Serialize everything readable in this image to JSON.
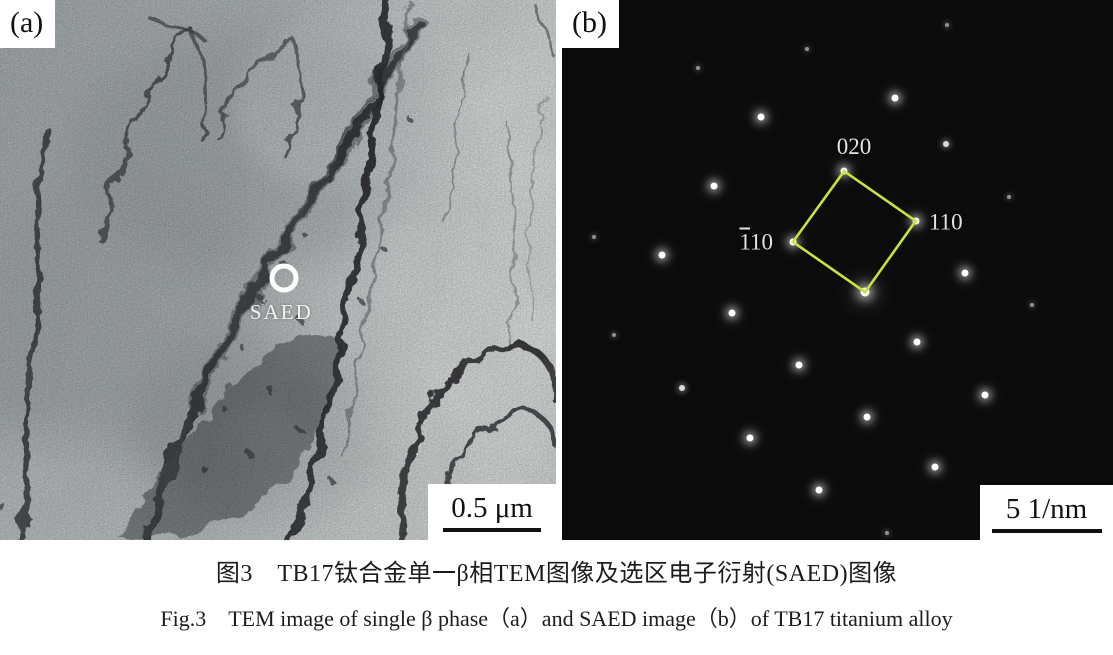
{
  "figure": {
    "panel_a": {
      "label": "(a)",
      "saed_marker_label": "SAED",
      "scale_bar_text": "0.5 μm"
    },
    "panel_b": {
      "label": "(b)",
      "scale_bar_text": "5 1/nm",
      "background_color": "#0b0b0b",
      "spot_color": "#ffffff",
      "square_color": "#cbe23b",
      "labels": {
        "l020": "020",
        "l110": "110",
        "m110_bar": "1",
        "m110_rest": "10"
      },
      "square_vertices_pct": [
        [
          51.2,
          31.7
        ],
        [
          64.2,
          40.9
        ],
        [
          55.0,
          54.1
        ],
        [
          41.9,
          44.8
        ]
      ],
      "spots": [
        [
          44.5,
          9.1,
          "f"
        ],
        [
          69.9,
          4.6,
          "f"
        ],
        [
          24.7,
          12.6,
          "f"
        ],
        [
          60.4,
          18.1,
          "b"
        ],
        [
          36.1,
          21.7,
          "b"
        ],
        [
          69.7,
          26.7,
          "m"
        ],
        [
          51.2,
          31.7,
          "b"
        ],
        [
          27.6,
          34.4,
          "b"
        ],
        [
          81.1,
          36.5,
          "f"
        ],
        [
          64.2,
          40.9,
          "b"
        ],
        [
          5.8,
          43.9,
          "f"
        ],
        [
          41.9,
          44.8,
          "b"
        ],
        [
          18.1,
          47.2,
          "b"
        ],
        [
          73.1,
          50.6,
          "b"
        ],
        [
          55.0,
          54.1,
          "xl"
        ],
        [
          85.3,
          56.5,
          "f"
        ],
        [
          30.9,
          58.0,
          "b"
        ],
        [
          9.4,
          62.0,
          "f"
        ],
        [
          64.4,
          63.3,
          "b"
        ],
        [
          43.0,
          67.6,
          "b"
        ],
        [
          21.8,
          71.9,
          "m"
        ],
        [
          76.8,
          73.1,
          "b"
        ],
        [
          55.4,
          77.2,
          "b"
        ],
        [
          34.1,
          81.1,
          "b"
        ],
        [
          67.7,
          86.5,
          "b"
        ],
        [
          46.6,
          90.7,
          "b"
        ],
        [
          59.0,
          98.7,
          "f"
        ]
      ]
    },
    "caption_zh": "图3　TB17钛合金单一β相TEM图像及选区电子衍射(SAED)图像",
    "caption_en": "Fig.3　TEM image of single β phase（a）and SAED image（b）of TB17 titanium alloy"
  }
}
